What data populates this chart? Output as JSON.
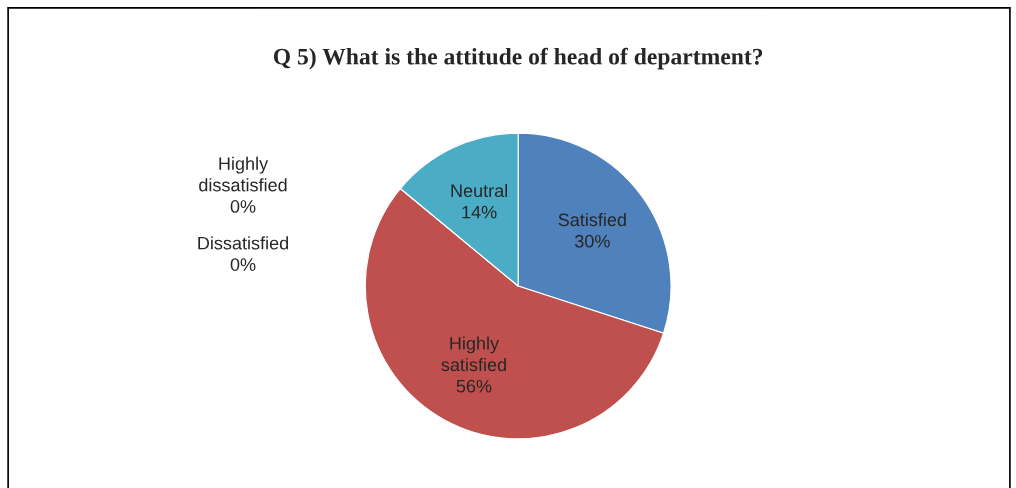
{
  "chart_data": {
    "type": "pie",
    "title": "Q 5) What is the attitude of head of department?",
    "categories": [
      "Satisfied",
      "Highly satisfied",
      "Highly dissatisfied",
      "Dissatisfied",
      "Neutral"
    ],
    "values": [
      30,
      56,
      0,
      0,
      14
    ],
    "colors": [
      "#4f81bd",
      "#c0504d",
      "#9bbb59",
      "#8064a2",
      "#4bacc6"
    ],
    "value_labels": [
      "30%",
      "56%",
      "0%",
      "0%",
      "14%"
    ],
    "legend": false
  }
}
